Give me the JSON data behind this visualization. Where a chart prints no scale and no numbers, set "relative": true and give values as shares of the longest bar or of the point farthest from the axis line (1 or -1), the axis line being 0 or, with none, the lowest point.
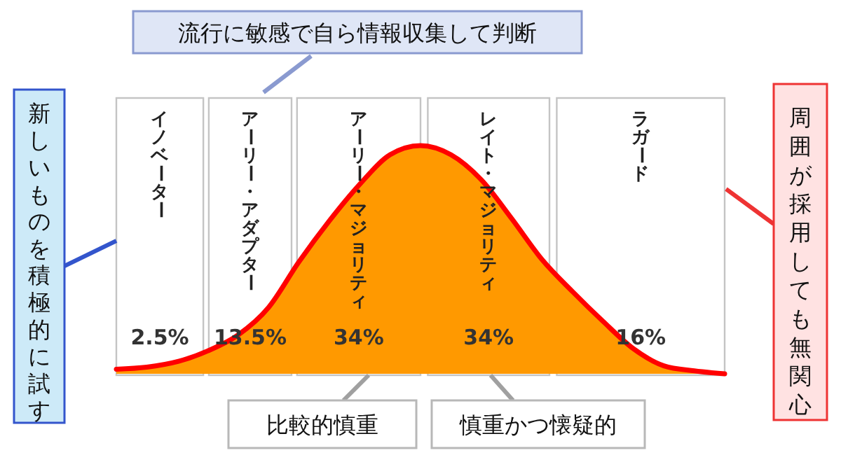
{
  "chart_data": {
    "type": "area",
    "relative": true,
    "tick_labels": false,
    "categories": [
      null,
      null,
      null,
      null,
      null,
      null,
      null,
      null,
      null,
      null,
      null,
      null,
      null,
      null,
      null,
      null,
      null,
      null,
      null,
      null,
      null
    ],
    "series": [
      {
        "color": "#ff9900",
        "values": [
          0.02,
          0.029,
          0.053,
          0.1,
          0.17,
          0.29,
          0.49,
          0.67,
          0.83,
          0.96,
          1,
          0.96,
          0.85,
          0.68,
          0.5,
          0.36,
          0.23,
          0.11,
          0.035,
          0.013,
          0
        ]
      }
    ],
    "annotations": [
      "流行に敏感で自ら情報収集して判断",
      "新しいものを積極的に試す",
      "周囲が採用しても無関心",
      "比較的慎重",
      "慎重かつ懐疑的",
      "イノベーター",
      "アーリー・アダプター",
      "アーリー・マジョリティ",
      "レイト・マジョリティ",
      "ラガード",
      "2.5%",
      "13.5%",
      "34%",
      "34%",
      "16%"
    ]
  }
}
